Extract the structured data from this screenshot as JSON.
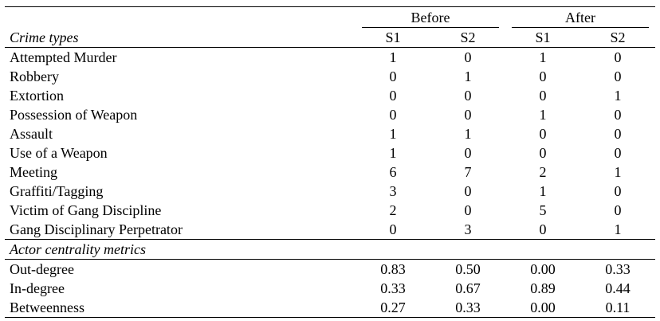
{
  "header": {
    "group_before": "Before",
    "group_after": "After",
    "row_label": "Crime types",
    "sub": [
      "S1",
      "S2",
      "S1",
      "S2"
    ]
  },
  "crime_rows": [
    {
      "label": "Attempted Murder",
      "values": [
        "1",
        "0",
        "1",
        "0"
      ]
    },
    {
      "label": "Robbery",
      "values": [
        "0",
        "1",
        "0",
        "0"
      ]
    },
    {
      "label": "Extortion",
      "values": [
        "0",
        "0",
        "0",
        "1"
      ]
    },
    {
      "label": "Possession of Weapon",
      "values": [
        "0",
        "0",
        "1",
        "0"
      ]
    },
    {
      "label": "Assault",
      "values": [
        "1",
        "1",
        "0",
        "0"
      ]
    },
    {
      "label": "Use of a Weapon",
      "values": [
        "1",
        "0",
        "0",
        "0"
      ]
    },
    {
      "label": "Meeting",
      "values": [
        "6",
        "7",
        "2",
        "1"
      ]
    },
    {
      "label": "Graffiti/Tagging",
      "values": [
        "3",
        "0",
        "1",
        "0"
      ]
    },
    {
      "label": "Victim of Gang Discipline",
      "values": [
        "2",
        "0",
        "5",
        "0"
      ]
    },
    {
      "label": "Gang Disciplinary Perpetrator",
      "values": [
        "0",
        "3",
        "0",
        "1"
      ]
    }
  ],
  "metrics_section": "Actor centrality metrics",
  "metric_rows": [
    {
      "label": "Out-degree",
      "values": [
        "0.83",
        "0.50",
        "0.00",
        "0.33"
      ]
    },
    {
      "label": "In-degree",
      "values": [
        "0.33",
        "0.67",
        "0.89",
        "0.44"
      ]
    },
    {
      "label": "Betweenness",
      "values": [
        "0.27",
        "0.33",
        "0.00",
        "0.11"
      ]
    }
  ]
}
